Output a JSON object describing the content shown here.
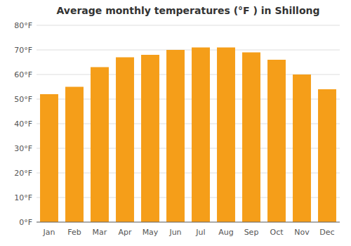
{
  "chart_data": {
    "type": "bar",
    "title": "Average monthly temperatures (°F ) in Shillong",
    "categories": [
      "Jan",
      "Feb",
      "Mar",
      "Apr",
      "May",
      "Jun",
      "Jul",
      "Aug",
      "Sep",
      "Oct",
      "Nov",
      "Dec"
    ],
    "values": [
      52,
      55,
      63,
      67,
      68,
      70,
      71,
      71,
      69,
      66,
      60,
      54
    ],
    "color": "#F59E19",
    "ylim": [
      0,
      80
    ],
    "yticks": [
      {
        "value": 0,
        "label": "0°F"
      },
      {
        "value": 10,
        "label": "10°F"
      },
      {
        "value": 20,
        "label": "20°F"
      },
      {
        "value": 30,
        "label": "30°F"
      },
      {
        "value": 40,
        "label": "40°F"
      },
      {
        "value": 50,
        "label": "50°F"
      },
      {
        "value": 60,
        "label": "60°F"
      },
      {
        "value": 70,
        "label": "70°F"
      },
      {
        "value": 80,
        "label": "80°F"
      }
    ],
    "grid": true
  }
}
